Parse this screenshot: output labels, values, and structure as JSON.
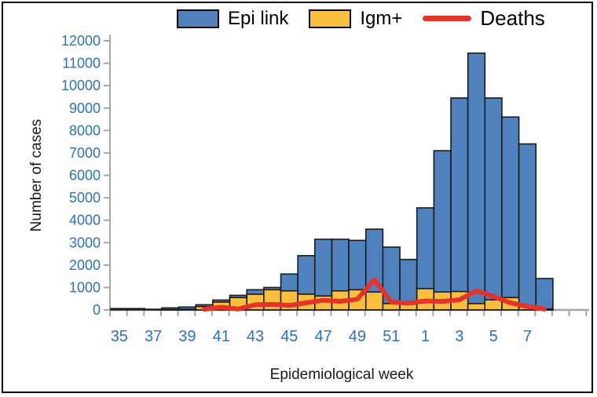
{
  "figure": {
    "background": "#ffffff",
    "border_color": "#000000",
    "axis_color": "#a6a6a6",
    "tick_label_color": "#2b72c0",
    "bar_outline_color": "#1a1a1a"
  },
  "legend": {
    "items": [
      {
        "label": "Epi link",
        "swatch": "bar",
        "color": "#4f81bd"
      },
      {
        "label": "Igm+",
        "swatch": "bar",
        "color": "#f9be3b"
      },
      {
        "label": "Deaths",
        "swatch": "line",
        "color": "#e63329"
      }
    ]
  },
  "chart_data": {
    "type": "combo-bar-line",
    "title": "",
    "xlabel": "Epidemiological week",
    "ylabel": "Number of cases",
    "ylim": [
      0,
      12000
    ],
    "y_tick_step": 1000,
    "y_tick_labels": [
      "0",
      "1000",
      "2000",
      "3000",
      "4000",
      "5000",
      "6000",
      "7000",
      "8000",
      "9000",
      "10000",
      "11000",
      "12000"
    ],
    "grid": false,
    "legend_position": "top",
    "categories": [
      "35",
      "36",
      "37",
      "38",
      "39",
      "40",
      "41",
      "42",
      "43",
      "44",
      "45",
      "46",
      "47",
      "48",
      "49",
      "50",
      "51",
      "52",
      "1",
      "2",
      "3",
      "4",
      "5",
      "6",
      "7",
      "8"
    ],
    "x_tick_labels_shown": [
      "35",
      "37",
      "39",
      "41",
      "43",
      "45",
      "47",
      "49",
      "51",
      "1",
      "3",
      "5",
      "7"
    ],
    "x_label_every": 2,
    "series": [
      {
        "name": "Epi link",
        "type": "bar",
        "color": "#4f81bd",
        "values": [
          60,
          60,
          30,
          90,
          130,
          230,
          440,
          650,
          900,
          1000,
          1600,
          2420,
          3150,
          3150,
          3100,
          3600,
          2800,
          2250,
          4550,
          7100,
          9450,
          11450,
          9450,
          8600,
          7400,
          1400
        ]
      },
      {
        "name": "Igm+",
        "type": "bar",
        "color": "#f9be3b",
        "values": [
          0,
          0,
          0,
          20,
          30,
          150,
          350,
          550,
          700,
          900,
          850,
          700,
          620,
          850,
          900,
          800,
          280,
          250,
          950,
          800,
          820,
          280,
          450,
          550,
          130,
          40
        ]
      },
      {
        "name": "Deaths",
        "type": "line",
        "color": "#e63329",
        "values": [
          null,
          null,
          null,
          null,
          null,
          30,
          120,
          40,
          230,
          250,
          200,
          320,
          430,
          380,
          480,
          1350,
          350,
          300,
          400,
          380,
          450,
          850,
          600,
          320,
          150,
          40
        ]
      }
    ]
  }
}
